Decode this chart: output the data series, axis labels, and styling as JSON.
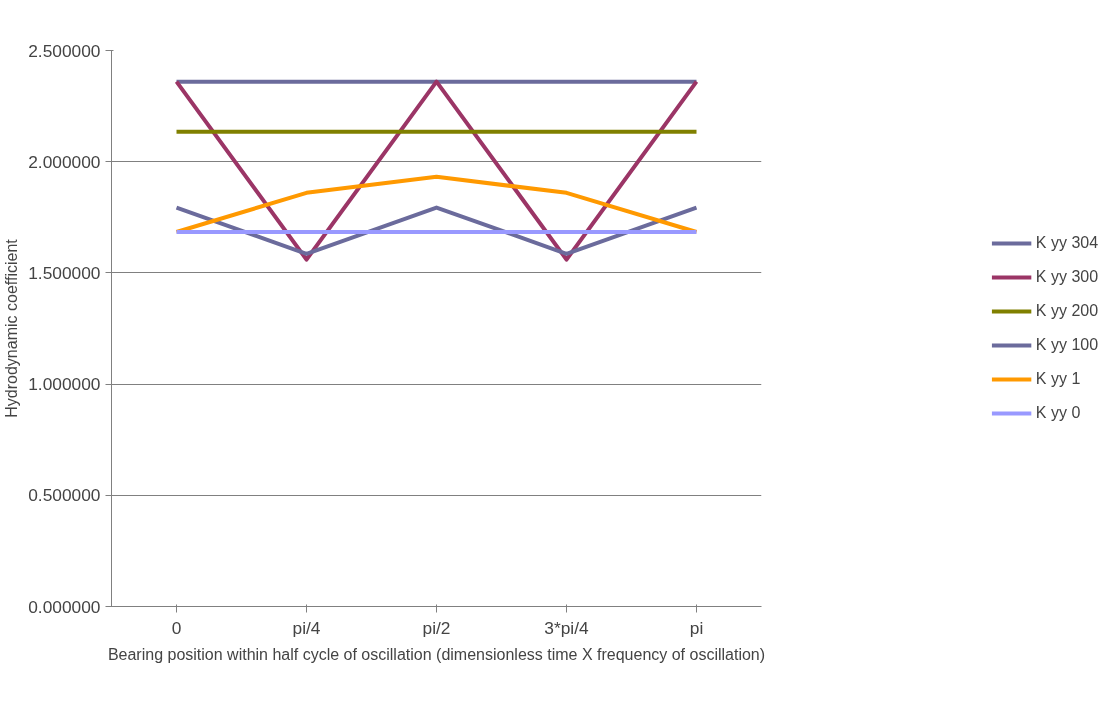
{
  "chart_data": {
    "type": "line",
    "xlabel": "Bearing position within half cycle of oscillation (dimensionless time X frequency of oscillation)",
    "ylabel": "Hydrodynamic coefficient",
    "categories": [
      "0",
      "pi/4",
      "pi/2",
      "3*pi/4",
      "pi"
    ],
    "series": [
      {
        "name": "K yy 304",
        "color": "#6b6b9c",
        "values": [
          2.36,
          2.36,
          2.36,
          2.36,
          2.36
        ]
      },
      {
        "name": "K yy 300",
        "color": "#9b3566",
        "values": [
          2.36,
          1.56,
          2.36,
          1.56,
          2.36
        ]
      },
      {
        "name": "K yy 200",
        "color": "#808000",
        "values": [
          2.135,
          2.135,
          2.135,
          2.135,
          2.135
        ]
      },
      {
        "name": "K yy 100",
        "color": "#6b6b9c",
        "values": [
          1.794,
          1.586,
          1.794,
          1.586,
          1.794
        ]
      },
      {
        "name": "K yy 1",
        "color": "#ff9900",
        "values": [
          1.684,
          1.86,
          1.932,
          1.86,
          1.684
        ]
      },
      {
        "name": "K yy 0",
        "color": "#9999ff",
        "values": [
          1.684,
          1.684,
          1.684,
          1.684,
          1.684
        ]
      }
    ],
    "ylim": [
      0,
      2.5
    ],
    "yticks": [
      {
        "value": 0,
        "label": "0.000000"
      },
      {
        "value": 0.5,
        "label": "0.500000"
      },
      {
        "value": 1,
        "label": "1.000000"
      },
      {
        "value": 1.5,
        "label": "1.500000"
      },
      {
        "value": 2,
        "label": "2.000000"
      },
      {
        "value": 2.5,
        "label": "2.500000"
      }
    ],
    "grid": "y",
    "legend": "right",
    "marker": "none",
    "line_style": "solid"
  }
}
